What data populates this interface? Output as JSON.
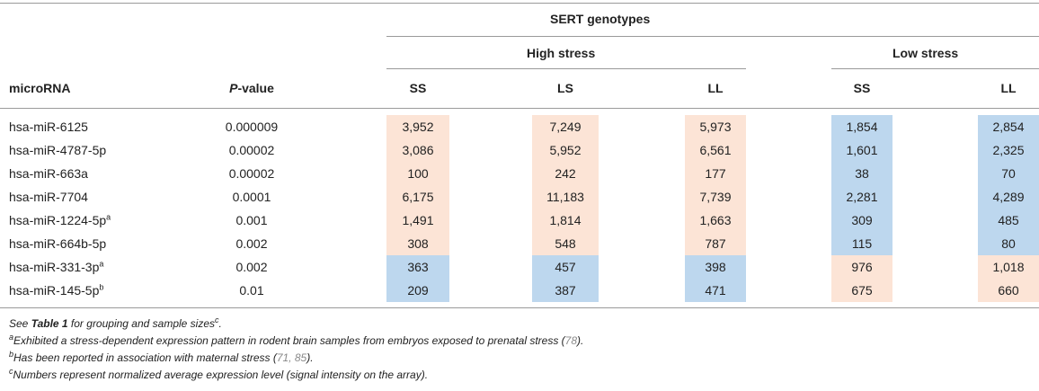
{
  "table": {
    "group_header": "SERT genotypes",
    "high_stress_label": "High stress",
    "low_stress_label": "Low stress",
    "col_microrna": "microRNA",
    "col_pvalue_italic": "P",
    "col_pvalue_rest": "-value",
    "col_hs_ss": "SS",
    "col_hs_ls": "LS",
    "col_hs_ll": "LL",
    "col_ls_ss": "SS",
    "col_ls_ll": "LL",
    "rows": [
      {
        "name": "hsa-miR-6125",
        "sup": "",
        "p": "0.000009",
        "hs_ss": "3,952",
        "hs_ls": "7,249",
        "hs_ll": "5,973",
        "ls_ss": "1,854",
        "ls_ll": "2,854"
      },
      {
        "name": "hsa-miR-4787-5p",
        "sup": "",
        "p": "0.00002",
        "hs_ss": "3,086",
        "hs_ls": "5,952",
        "hs_ll": "6,561",
        "ls_ss": "1,601",
        "ls_ll": "2,325"
      },
      {
        "name": "hsa-miR-663a",
        "sup": "",
        "p": "0.00002",
        "hs_ss": "100",
        "hs_ls": "242",
        "hs_ll": "177",
        "ls_ss": "38",
        "ls_ll": "70"
      },
      {
        "name": "hsa-miR-7704",
        "sup": "",
        "p": "0.0001",
        "hs_ss": "6,175",
        "hs_ls": "11,183",
        "hs_ll": "7,739",
        "ls_ss": "2,281",
        "ls_ll": "4,289"
      },
      {
        "name": "hsa-miR-1224-5p",
        "sup": "a",
        "p": "0.001",
        "hs_ss": "1,491",
        "hs_ls": "1,814",
        "hs_ll": "1,663",
        "ls_ss": "309",
        "ls_ll": "485"
      },
      {
        "name": "hsa-miR-664b-5p",
        "sup": "",
        "p": "0.002",
        "hs_ss": "308",
        "hs_ls": "548",
        "hs_ll": "787",
        "ls_ss": "115",
        "ls_ll": "80"
      },
      {
        "name": "hsa-miR-331-3p",
        "sup": "a",
        "p": "0.002",
        "hs_ss": "363",
        "hs_ls": "457",
        "hs_ll": "398",
        "ls_ss": "976",
        "ls_ll": "1,018"
      },
      {
        "name": "hsa-miR-145-5p",
        "sup": "b",
        "p": "0.01",
        "hs_ss": "209",
        "hs_ls": "387",
        "hs_ll": "471",
        "ls_ss": "675",
        "ls_ll": "660"
      }
    ]
  },
  "footnotes": {
    "n0_pre": "See ",
    "n0_link": "Table 1",
    "n0_mid": " for grouping and sample sizes",
    "n0_sup": "c",
    "n0_end": ".",
    "na_mark": "a",
    "na_text": "Exhibited a stress-dependent expression pattern in rodent brain samples from embryos exposed to prenatal stress (",
    "na_link": "78",
    "na_end": ").",
    "nb_mark": "b",
    "nb_text": "Has been reported in association with maternal stress (",
    "nb_link": "71, 85",
    "nb_end": ").",
    "nc_mark": "c",
    "nc_text": "Numbers represent normalized average expression level (signal intensity on the array)."
  },
  "colors": {
    "high_expression": "#fce4d6",
    "low_expression": "#bdd7ee",
    "rule": "#9a9a9a"
  }
}
